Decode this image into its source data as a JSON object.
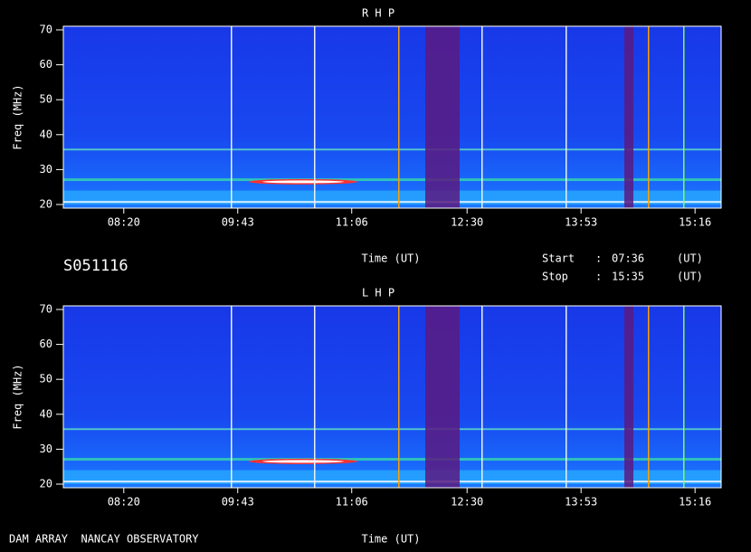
{
  "chart_data": [
    {
      "type": "spectrogram",
      "title": "R H P",
      "xlabel": "Time (UT)",
      "ylabel": "Freq (MHz)",
      "xlim": [
        456,
        935
      ],
      "xticks": [
        {
          "value": 500,
          "label": "08:20"
        },
        {
          "value": 583,
          "label": "09:43"
        },
        {
          "value": 666,
          "label": "11:06"
        },
        {
          "value": 750,
          "label": "12:30"
        },
        {
          "value": 833,
          "label": "13:53"
        },
        {
          "value": 916,
          "label": "15:16"
        }
      ],
      "ylim": [
        20,
        70
      ],
      "yticks": [
        20,
        30,
        40,
        50,
        60,
        70
      ]
    },
    {
      "type": "spectrogram",
      "title": "L H P",
      "xlabel": "Time (UT)",
      "ylabel": "Freq (MHz)",
      "xlim": [
        456,
        935
      ],
      "xticks": [
        {
          "value": 500,
          "label": "08:20"
        },
        {
          "value": 583,
          "label": "09:43"
        },
        {
          "value": 666,
          "label": "11:06"
        },
        {
          "value": 750,
          "label": "12:30"
        },
        {
          "value": 833,
          "label": "13:53"
        },
        {
          "value": 916,
          "label": "15:16"
        }
      ],
      "ylim": [
        20,
        70
      ],
      "yticks": [
        20,
        30,
        40,
        50,
        60,
        70
      ]
    }
  ],
  "header": {
    "date_code": "S051116",
    "start_label": "Start",
    "start_sep": ":",
    "start_time": "07:36",
    "start_unit": "(UT)",
    "stop_label": "Stop",
    "stop_sep": ":",
    "stop_time": "15:35",
    "stop_unit": "(UT)"
  },
  "footer": {
    "observatory": "DAM ARRAY  NANCAY OBSERVATORY"
  }
}
